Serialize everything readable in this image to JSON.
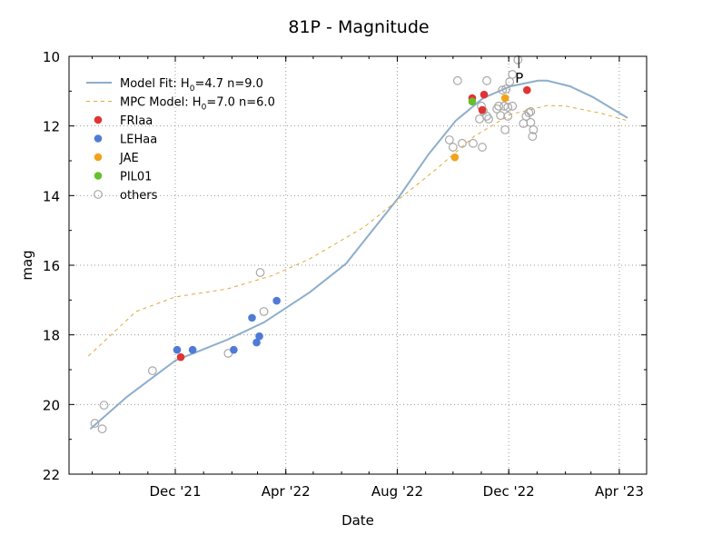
{
  "chart_data": {
    "type": "scatter",
    "title": "81P - Magnitude",
    "xlabel": "Date",
    "ylabel": "mag",
    "ylim": [
      22,
      10
    ],
    "y_inverted": true,
    "xlim": [
      "2021-08-15",
      "2023-05-01"
    ],
    "grid": true,
    "legend_position": "top-left",
    "x_ticks": [
      {
        "date": "2021-12-01",
        "label": "Dec '21"
      },
      {
        "date": "2022-04-01",
        "label": "Apr '22"
      },
      {
        "date": "2022-08-01",
        "label": "Aug '22"
      },
      {
        "date": "2022-12-01",
        "label": "Dec '22"
      },
      {
        "date": "2023-04-01",
        "label": "Apr '23"
      }
    ],
    "y_ticks": [
      10,
      12,
      14,
      16,
      18,
      20,
      22
    ],
    "perihelion": {
      "date": "2022-12-12",
      "label": "P"
    },
    "lines": [
      {
        "name": "Model Fit: H0=4.7 n=9.0",
        "label_main": "Model Fit: H",
        "label_sub": "0",
        "label_rest": "=4.7 n=9.0",
        "color": "#8caecb",
        "style": "solid",
        "points": [
          [
            "2021-08-30",
            20.7
          ],
          [
            "2021-10-09",
            19.78
          ],
          [
            "2021-12-01",
            18.74
          ],
          [
            "2022-01-27",
            18.14
          ],
          [
            "2022-03-08",
            17.64
          ],
          [
            "2022-04-27",
            16.78
          ],
          [
            "2022-06-06",
            15.95
          ],
          [
            "2022-08-02",
            14.07
          ],
          [
            "2022-09-04",
            12.82
          ],
          [
            "2022-10-04",
            11.85
          ],
          [
            "2022-11-03",
            11.2
          ],
          [
            "2022-12-03",
            10.86
          ],
          [
            "2023-01-02",
            10.7
          ],
          [
            "2023-01-12",
            10.7
          ],
          [
            "2023-02-06",
            10.86
          ],
          [
            "2023-03-03",
            11.17
          ],
          [
            "2023-04-10",
            11.77
          ]
        ]
      },
      {
        "name": "MPC Model: H0=7.0 n=6.0",
        "label_main": "MPC Model: H",
        "label_sub": "0",
        "label_rest": "=7.0 n=6.0",
        "color": "#e0a83a",
        "style": "dashed",
        "points": [
          [
            "2021-08-28",
            18.61
          ],
          [
            "2021-10-19",
            17.33
          ],
          [
            "2021-12-01",
            16.91
          ],
          [
            "2022-01-27",
            16.68
          ],
          [
            "2022-03-18",
            16.29
          ],
          [
            "2022-04-27",
            15.82
          ],
          [
            "2022-06-26",
            14.9
          ],
          [
            "2022-08-02",
            14.12
          ],
          [
            "2022-09-14",
            13.21
          ],
          [
            "2022-10-24",
            12.3
          ],
          [
            "2022-12-03",
            11.67
          ],
          [
            "2023-01-12",
            11.41
          ],
          [
            "2023-02-01",
            11.43
          ],
          [
            "2023-03-13",
            11.64
          ],
          [
            "2023-04-10",
            11.85
          ]
        ]
      }
    ],
    "series": [
      {
        "name": "FRIaa",
        "color": "#e03434",
        "filled": true,
        "points": [
          [
            "2021-12-07",
            18.64
          ],
          [
            "2022-10-22",
            11.2
          ],
          [
            "2022-11-04",
            11.1
          ],
          [
            "2022-11-02",
            11.54
          ],
          [
            "2022-12-21",
            10.97
          ]
        ]
      },
      {
        "name": "LEHaa",
        "color": "#4f7bd6",
        "filled": true,
        "points": [
          [
            "2021-12-03",
            18.43
          ],
          [
            "2021-12-20",
            18.43
          ],
          [
            "2022-02-03",
            18.43
          ],
          [
            "2022-02-23",
            17.51
          ],
          [
            "2022-02-28",
            18.22
          ],
          [
            "2022-03-03",
            18.04
          ],
          [
            "2022-03-22",
            17.02
          ]
        ]
      },
      {
        "name": "JAE",
        "color": "#f2a31c",
        "filled": true,
        "points": [
          [
            "2022-10-03",
            12.9
          ],
          [
            "2022-11-27",
            11.2
          ]
        ]
      },
      {
        "name": "PIL01",
        "color": "#66c02a",
        "filled": true,
        "points": [
          [
            "2022-10-22",
            11.3
          ]
        ]
      },
      {
        "name": "others",
        "color": "#a8a8a8",
        "filled": false,
        "points": [
          [
            "2021-09-04",
            20.54
          ],
          [
            "2021-09-14",
            20.02
          ],
          [
            "2021-09-12",
            20.7
          ],
          [
            "2021-11-06",
            19.03
          ],
          [
            "2022-01-28",
            18.53
          ],
          [
            "2022-03-04",
            16.21
          ],
          [
            "2022-03-08",
            17.33
          ],
          [
            "2022-09-27",
            12.4
          ],
          [
            "2022-10-01",
            12.61
          ],
          [
            "2022-10-06",
            10.7
          ],
          [
            "2022-10-11",
            12.5
          ],
          [
            "2022-10-23",
            12.5
          ],
          [
            "2022-11-02",
            12.61
          ],
          [
            "2022-11-07",
            10.7
          ],
          [
            "2022-10-30",
            11.8
          ],
          [
            "2022-11-01",
            11.43
          ],
          [
            "2022-11-03",
            11.57
          ],
          [
            "2022-11-07",
            11.72
          ],
          [
            "2022-11-09",
            11.8
          ],
          [
            "2022-11-18",
            11.51
          ],
          [
            "2022-11-20",
            11.43
          ],
          [
            "2022-11-22",
            11.7
          ],
          [
            "2022-11-24",
            10.97
          ],
          [
            "2022-11-26",
            11.43
          ],
          [
            "2022-11-28",
            10.94
          ],
          [
            "2022-11-30",
            11.46
          ],
          [
            "2022-12-02",
            10.73
          ],
          [
            "2022-11-30",
            11.72
          ],
          [
            "2022-12-05",
            10.52
          ],
          [
            "2022-12-05",
            11.43
          ],
          [
            "2022-12-11",
            10.1
          ],
          [
            "2022-11-27",
            12.11
          ],
          [
            "2022-12-17",
            11.93
          ],
          [
            "2022-12-20",
            11.72
          ],
          [
            "2022-12-23",
            11.62
          ],
          [
            "2022-12-25",
            11.59
          ],
          [
            "2022-12-25",
            11.9
          ],
          [
            "2022-12-28",
            12.11
          ],
          [
            "2022-12-27",
            12.3
          ]
        ]
      }
    ]
  }
}
